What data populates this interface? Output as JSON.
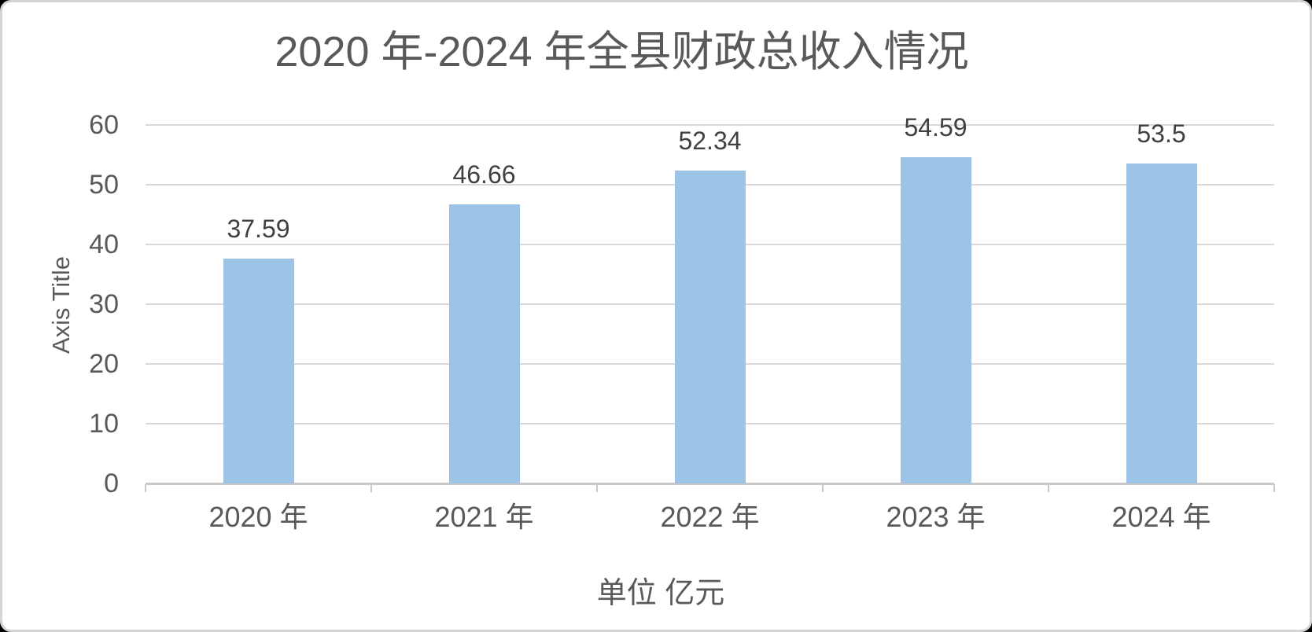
{
  "chart": {
    "title": "2020 年-2024 年全县财政总收入情况",
    "y_axis_title": "Axis Title",
    "unit_label": "单位 亿元",
    "colors": {
      "bar": "#9dc3e6",
      "gridline": "#d9d9d9",
      "axis_line": "#c9c9c9",
      "title_text": "#595959",
      "data_label_text": "#404040",
      "card_border": "#d5d5d5",
      "background": "#ffffff"
    }
  },
  "chart_data": {
    "type": "bar",
    "title": "2020 年-2024 年全县财政总收入情况",
    "categories": [
      "2020 年",
      "2021 年",
      "2022 年",
      "2023 年",
      "2024 年"
    ],
    "values": [
      37.59,
      46.66,
      52.34,
      54.59,
      53.5
    ],
    "data_labels": [
      "37.59",
      "46.66",
      "52.34",
      "54.59",
      "53.5"
    ],
    "series_name": "全县财政总收入",
    "xlabel": "单位 亿元",
    "ylabel": "Axis Title",
    "ylim": [
      0,
      60
    ],
    "yticks": [
      0,
      10,
      20,
      30,
      40,
      50,
      60
    ],
    "grid": true,
    "legend": false,
    "bar_color": "#9dc3e6"
  }
}
